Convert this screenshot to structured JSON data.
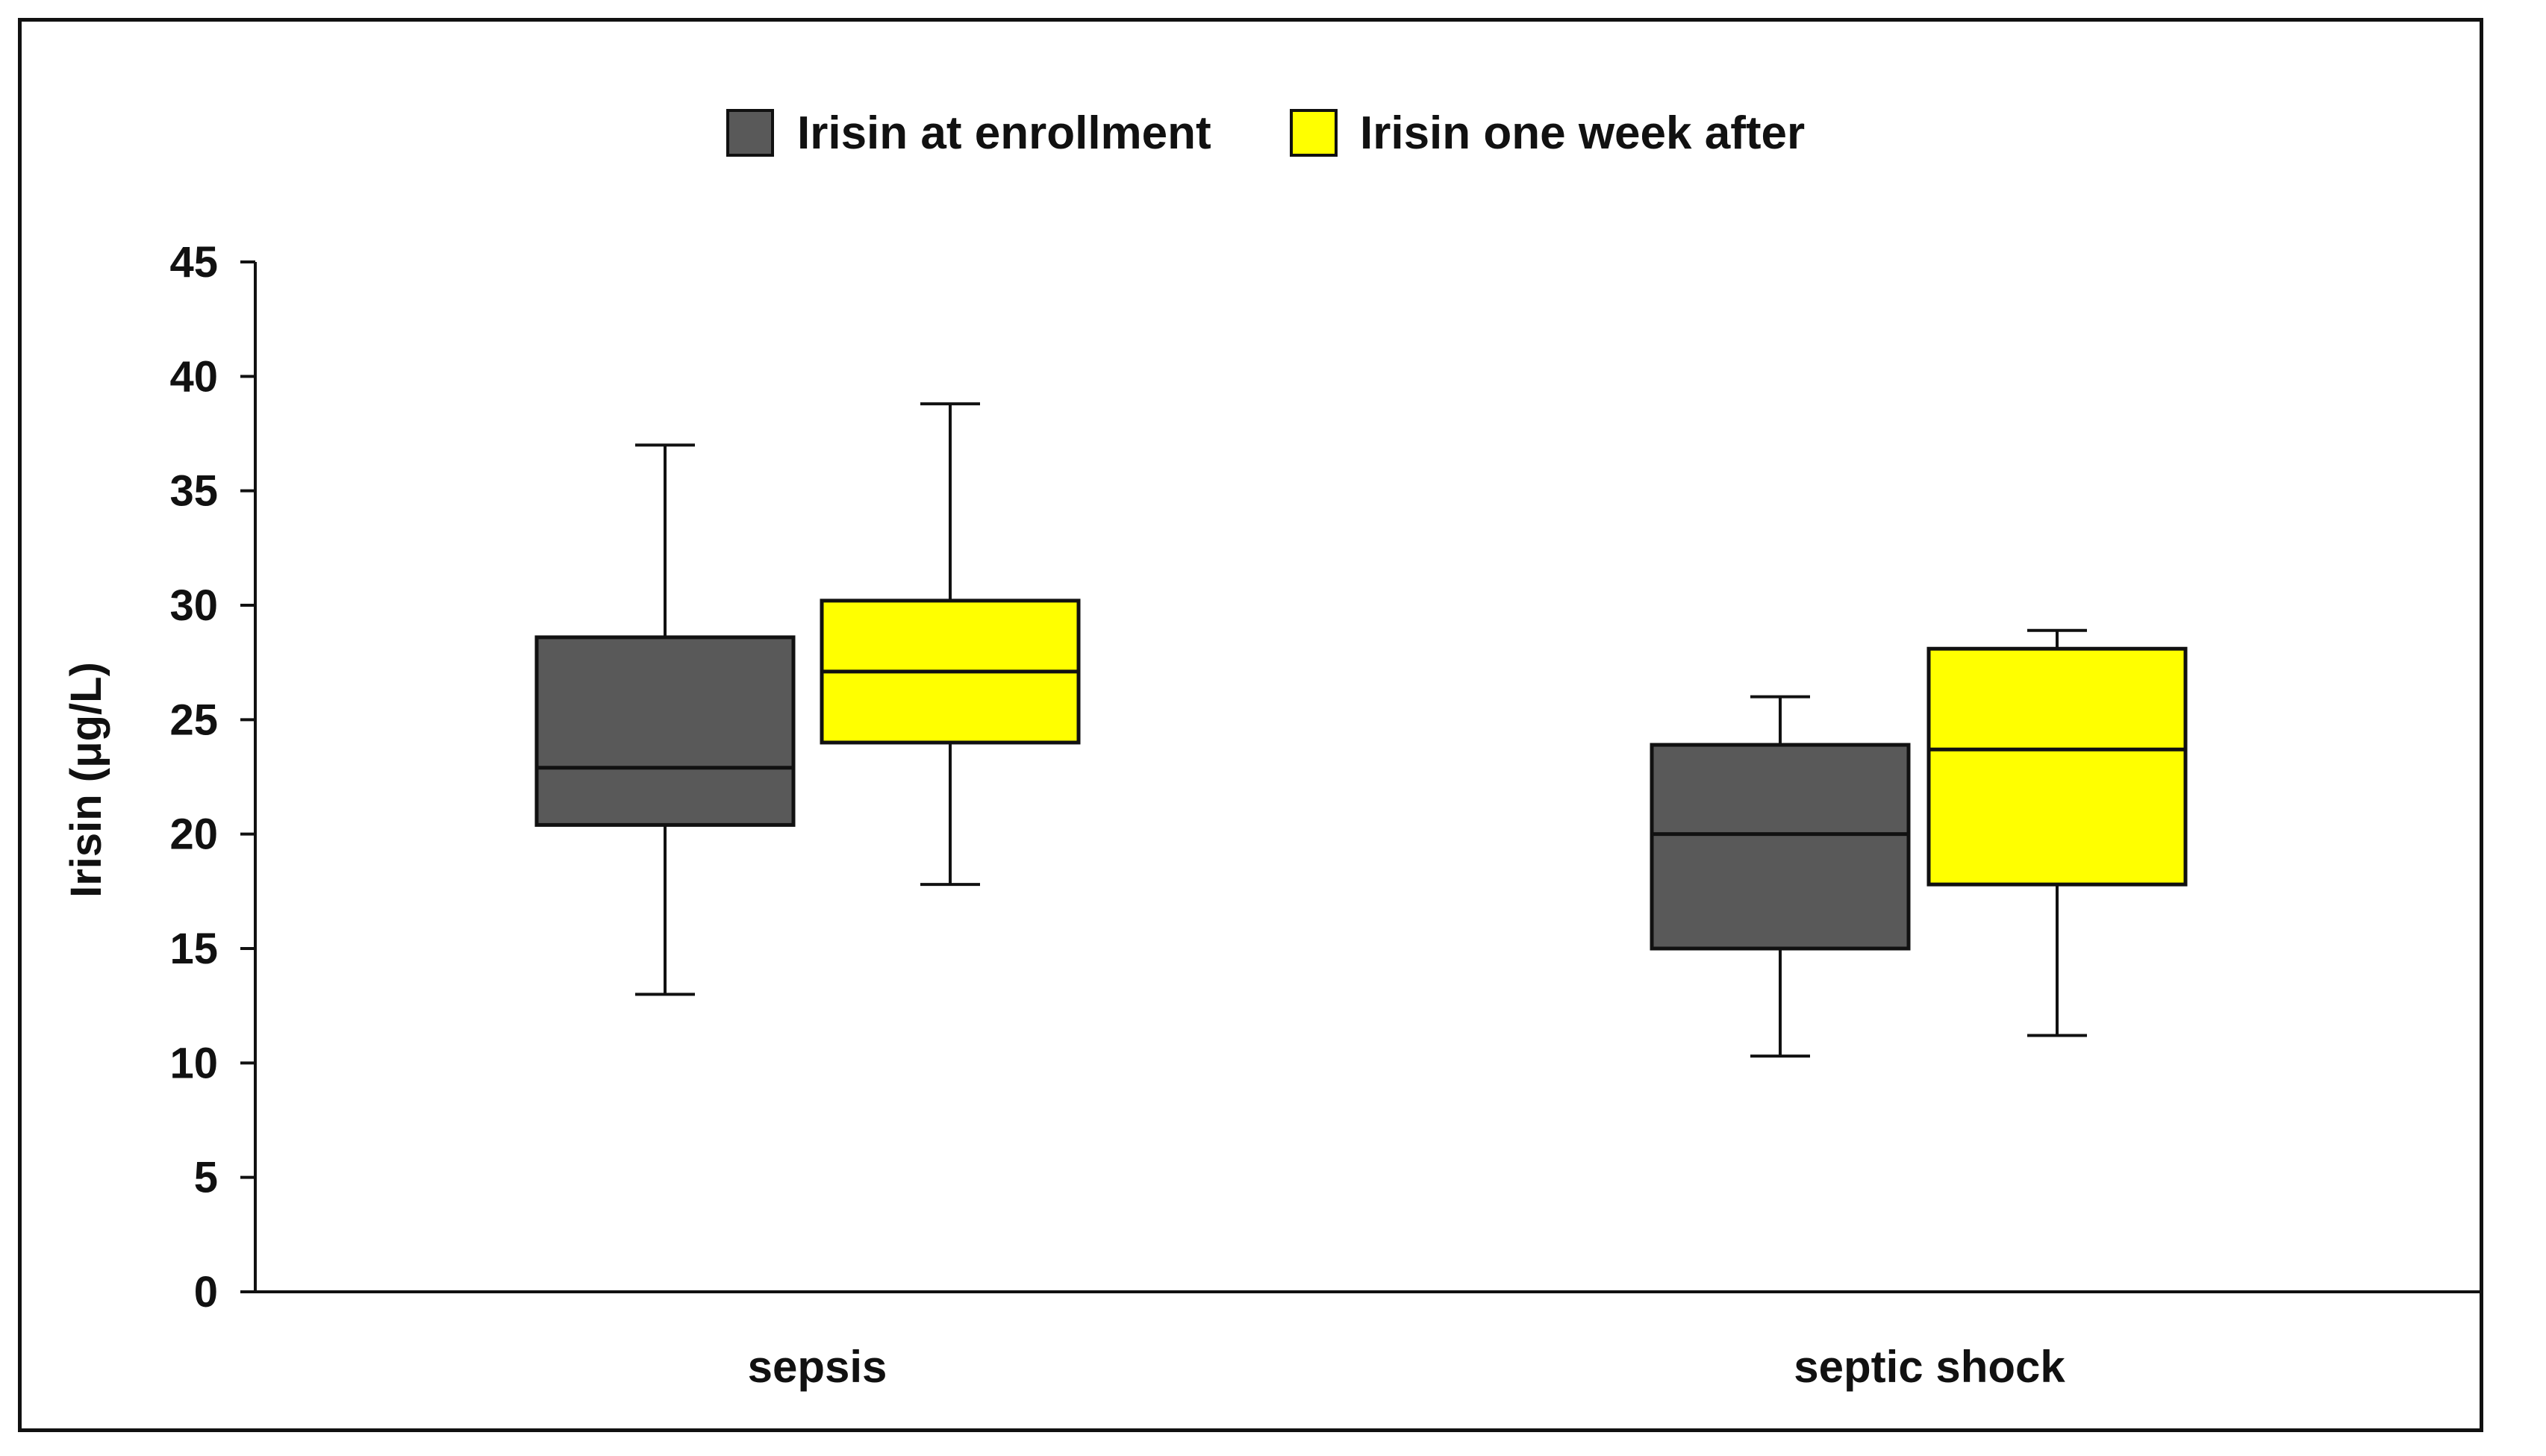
{
  "chart_data": {
    "type": "boxplot",
    "title": "",
    "xlabel": "",
    "ylabel": "Irisin (μg/L)",
    "ylim": [
      0,
      45
    ],
    "yticks": [
      0,
      5,
      10,
      15,
      20,
      25,
      30,
      35,
      40,
      45
    ],
    "grid": false,
    "legend_position": "top-center",
    "categories": [
      "sepsis",
      "septic shock"
    ],
    "series": [
      {
        "name": "Irisin at enrollment",
        "color": "#595959",
        "boxes": [
          {
            "min": 13.0,
            "q1": 20.4,
            "median": 22.9,
            "q3": 28.6,
            "max": 37.0
          },
          {
            "min": 10.3,
            "q1": 15.0,
            "median": 20.0,
            "q3": 23.9,
            "max": 26.0
          }
        ]
      },
      {
        "name": "Irisin one week after",
        "color": "#ffff00",
        "boxes": [
          {
            "min": 17.8,
            "q1": 24.0,
            "median": 27.1,
            "q3": 30.2,
            "max": 38.8
          },
          {
            "min": 11.2,
            "q1": 17.8,
            "median": 23.7,
            "q3": 28.1,
            "max": 28.9
          }
        ]
      }
    ]
  }
}
